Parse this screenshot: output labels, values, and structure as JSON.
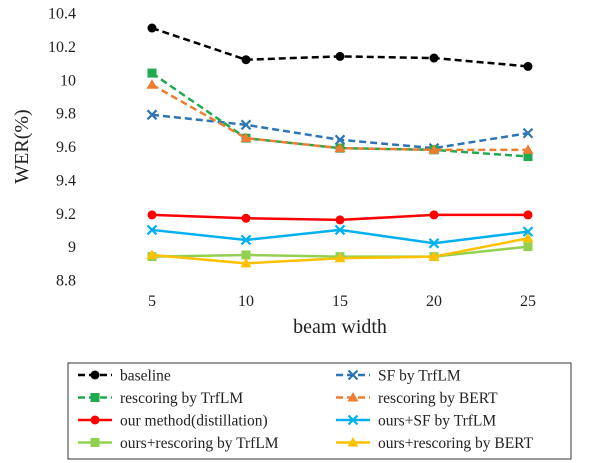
{
  "chart_data": {
    "type": "line",
    "x": [
      5,
      10,
      15,
      20,
      25
    ],
    "xlabel": "beam width",
    "ylabel": "WER(%)",
    "ylim": [
      8.8,
      10.4
    ],
    "yticks": [
      "8.8",
      "9",
      "9.2",
      "9.4",
      "9.6",
      "9.8",
      "10",
      "10.2",
      "10.4"
    ],
    "xticks": [
      "5",
      "10",
      "15",
      "20",
      "25"
    ],
    "grid": false,
    "legend_position": "bottom",
    "series": [
      {
        "name": "baseline",
        "values": [
          10.31,
          10.12,
          10.14,
          10.13,
          10.08
        ],
        "color": "#000000",
        "dash": true,
        "marker": "circle"
      },
      {
        "name": "SF by TrfLM",
        "values": [
          9.79,
          9.73,
          9.64,
          9.59,
          9.68
        ],
        "color": "#2e75b6",
        "dash": true,
        "marker": "x"
      },
      {
        "name": "rescoring by TrfLM",
        "values": [
          10.04,
          9.65,
          9.59,
          9.58,
          9.54
        ],
        "color": "#1faa50",
        "dash": true,
        "marker": "square"
      },
      {
        "name": "rescoring by BERT",
        "values": [
          9.97,
          9.65,
          9.59,
          9.58,
          9.58
        ],
        "color": "#ed7d31",
        "dash": true,
        "marker": "triangle"
      },
      {
        "name": "our method(distillation)",
        "values": [
          9.19,
          9.17,
          9.16,
          9.19,
          9.19
        ],
        "color": "#ff0000",
        "dash": false,
        "marker": "circle"
      },
      {
        "name": "ours+SF by TrfLM",
        "values": [
          9.1,
          9.04,
          9.1,
          9.02,
          9.09
        ],
        "color": "#00b0f0",
        "dash": false,
        "marker": "x"
      },
      {
        "name": "ours+rescoring by TrfLM",
        "values": [
          8.94,
          8.95,
          8.94,
          8.94,
          9.0
        ],
        "color": "#92d050",
        "dash": false,
        "marker": "square"
      },
      {
        "name": "ours+rescoring by BERT",
        "values": [
          8.95,
          8.9,
          8.93,
          8.94,
          9.05
        ],
        "color": "#ffc000",
        "dash": false,
        "marker": "triangle"
      }
    ]
  }
}
